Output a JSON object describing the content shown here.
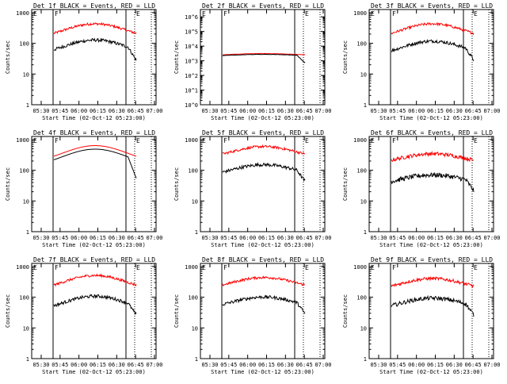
{
  "chart_data": {
    "type": "line",
    "shared": {
      "ylabel": "Counts/sec",
      "xlabel_prefix": "Start Time (02-Oct-12 05:23:00)",
      "x_ticks": [
        "05:30",
        "05:45",
        "06:00",
        "06:15",
        "06:30",
        "06:45",
        "07:00"
      ],
      "x_ticks_mid": [
        "05:30",
        "05:45",
        "06:00",
        "06:15",
        "06:30",
        "06:45",
        "07:00"
      ],
      "y_ticks": [
        "1",
        "10",
        "100",
        "1000"
      ],
      "y_ticks_big": [
        "10^0",
        "10^1",
        "10^2",
        "10^3",
        "10^4",
        "10^5",
        "10^6"
      ],
      "marker_F": "F",
      "marker_E": "E",
      "series_colors": {
        "black": "#000000",
        "red": "#ff0000"
      }
    },
    "panels": [
      {
        "title": "Det 1f BLACK = Events, RED = LLD",
        "red_base": 220,
        "black_base": 65,
        "amp": 0.45,
        "noise": 0.08,
        "dip": 0.35,
        "xlabel": "Start Time (02-Oct-12 05:23:00)"
      },
      {
        "title": "Det 2f BLACK = Events, RED = LLD",
        "red_base": 2600,
        "black_base": 2300,
        "amp": 0.12,
        "noise": 0.02,
        "dip": 0.5,
        "log_big": true,
        "xlabel": "Start Time (02-Oct-12 05:23:00)"
      },
      {
        "title": "Det 3f BLACK = Events, RED = LLD",
        "red_base": 220,
        "black_base": 60,
        "amp": 0.45,
        "noise": 0.08,
        "dip": 0.3,
        "xlabel": "Start Time (02-Oct-12 05:23:00)"
      },
      {
        "title": "Det 4f BLACK = Events, RED = LLD",
        "red_base": 300,
        "black_base": 230,
        "amp": 0.5,
        "noise": 0.02,
        "dip": 0.6,
        "smooth": true,
        "xlabel": "Start Time (02-Oct-12 05:23:00)"
      },
      {
        "title": "Det 5f BLACK = Events, RED = LLD",
        "red_base": 350,
        "black_base": 90,
        "amp": 0.35,
        "noise": 0.08,
        "dip": 0.3,
        "xlabel": "Start Time (02-Oct-12 05:23:00)"
      },
      {
        "title": "Det 6f BLACK = Events, RED = LLD",
        "red_base": 220,
        "black_base": 45,
        "amp": 0.3,
        "noise": 0.12,
        "dip": 0.3,
        "xlabel": "Start Time (02-Oct-12 05:23:00)"
      },
      {
        "title": "Det 7f BLACK = Events, RED = LLD",
        "red_base": 260,
        "black_base": 55,
        "amp": 0.45,
        "noise": 0.08,
        "dip": 0.3,
        "xlabel": "Start Time (02-Oct-12 05:23:00)"
      },
      {
        "title": "Det 8f BLACK = Events, RED = LLD",
        "red_base": 260,
        "black_base": 60,
        "amp": 0.35,
        "noise": 0.08,
        "dip": 0.3,
        "xlabel": "Start Time (02-Oct-12 05:23:00)"
      },
      {
        "title": "Det 9f BLACK = Events, RED = LLD",
        "red_base": 240,
        "black_base": 55,
        "amp": 0.35,
        "noise": 0.1,
        "dip": 0.3,
        "xlabel": "Start Time (02-Oct-12 05:23:00)"
      }
    ]
  }
}
